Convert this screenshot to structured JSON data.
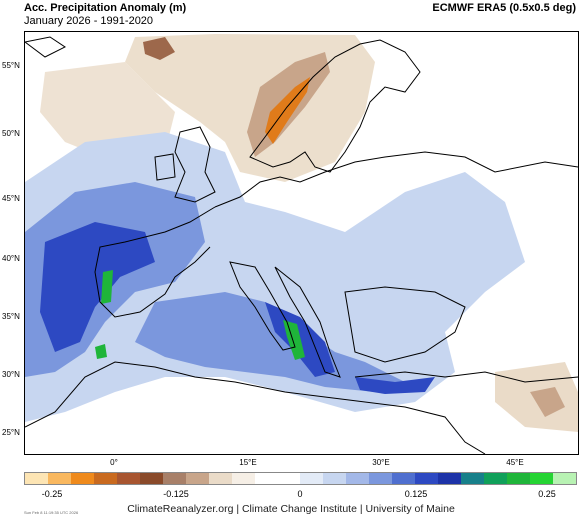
{
  "header": {
    "title": "Acc. Precipitation Anomaly (m)",
    "subtitle": "January 2026 - 1991-2020",
    "dataset": "ECMWF ERA5 (0.5x0.5 deg)"
  },
  "map": {
    "latitude_labels": [
      "55°N",
      "50°N",
      "45°N",
      "40°N",
      "35°N",
      "30°N",
      "25°N"
    ],
    "longitude_labels": [
      "0°",
      "15°E",
      "30°E",
      "45°E"
    ],
    "colors": {
      "ocean": "#ffffff",
      "coastline": "#000000",
      "wet_light": "#c7d6f0",
      "wet_mid": "#7b97dd",
      "wet_strong": "#2d49c2",
      "wet_max": "#1fb53a",
      "dry_light": "#eadbc8",
      "dry_mid": "#c8a58a",
      "dry_strong": "#8a4a2a",
      "dry_max": "#e07b1a"
    }
  },
  "colorbar": {
    "colors": [
      "#fde5b4",
      "#f9b85f",
      "#ef8a1c",
      "#c96a1f",
      "#a85530",
      "#8a4a2a",
      "#a88069",
      "#c8a58a",
      "#eadbc8",
      "#f6efe6",
      "#ffffff",
      "#ffffff",
      "#e3ebf7",
      "#c7d6f0",
      "#a3b8e8",
      "#7b97dd",
      "#4f6fcf",
      "#2d49c2",
      "#1d33a8",
      "#17808a",
      "#10a05a",
      "#1fb53a",
      "#25d433",
      "#b8f2b3"
    ],
    "tick_labels": [
      "-0.25",
      "-0.125",
      "0",
      "0.125",
      "0.25"
    ]
  },
  "footer": {
    "credit": "ClimateReanalyzer.org | Climate Change Institute | University of Maine",
    "stamp": "Sun Feb 8 11:19:35 UTC 2026"
  }
}
